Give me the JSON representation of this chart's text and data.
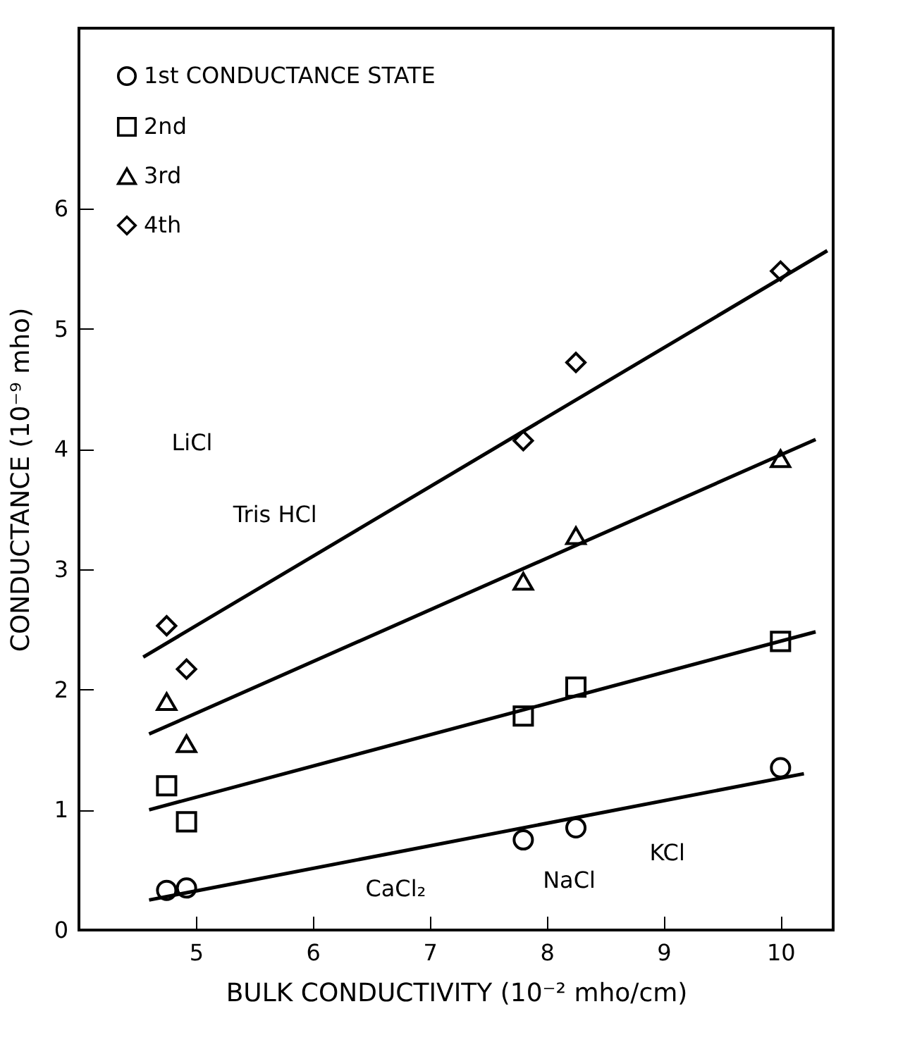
{
  "chart_data": {
    "type": "scatter",
    "xlabel": "BULK CONDUCTIVITY (10⁻² mho/cm)",
    "ylabel": "CONDUCTANCE (10⁻⁹ mho)",
    "x": [
      4.75,
      4.92,
      7.8,
      8.25,
      10
    ],
    "series": [
      {
        "name": "1st CONDUCTANCE STATE",
        "color": "#000000",
        "marker": "circle",
        "values": [
          0.33,
          0.35,
          0.75,
          0.85,
          1.35
        ]
      },
      {
        "name": "2nd",
        "color": "#000000",
        "marker": "square",
        "values": [
          1.2,
          0.9,
          1.78,
          2.02,
          2.4
        ]
      },
      {
        "name": "3rd",
        "color": "#000000",
        "marker": "triangle",
        "values": [
          1.9,
          1.55,
          2.9,
          3.28,
          3.92
        ]
      },
      {
        "name": "4th",
        "color": "#000000",
        "marker": "diamond",
        "values": [
          2.53,
          2.17,
          4.07,
          4.72,
          5.48
        ]
      },
      {
        "type": "line",
        "color": "#000000",
        "x": [
          4.6,
          10.2
        ],
        "values": [
          0.25,
          1.3
        ]
      },
      {
        "type": "line",
        "color": "#000000",
        "x": [
          4.6,
          10.3
        ],
        "values": [
          1.0,
          2.48
        ]
      },
      {
        "type": "line",
        "color": "#000000",
        "x": [
          4.6,
          10.3
        ],
        "values": [
          1.63,
          4.08
        ]
      },
      {
        "type": "line",
        "color": "#000000",
        "x": [
          4.55,
          10.4
        ],
        "values": [
          2.27,
          5.65
        ]
      }
    ],
    "annotations": [
      "LiCl",
      "Tris HCl",
      "CaCl₂",
      "NaCl",
      "KCl"
    ],
    "xlim": [
      4.0,
      10.45
    ],
    "ylim": [
      0,
      7.5
    ],
    "xticks": [
      5,
      6,
      7,
      8,
      9,
      10
    ],
    "yticks": [
      0,
      1,
      2,
      3,
      4,
      5,
      6
    ],
    "grid": false,
    "legend": "top left"
  }
}
